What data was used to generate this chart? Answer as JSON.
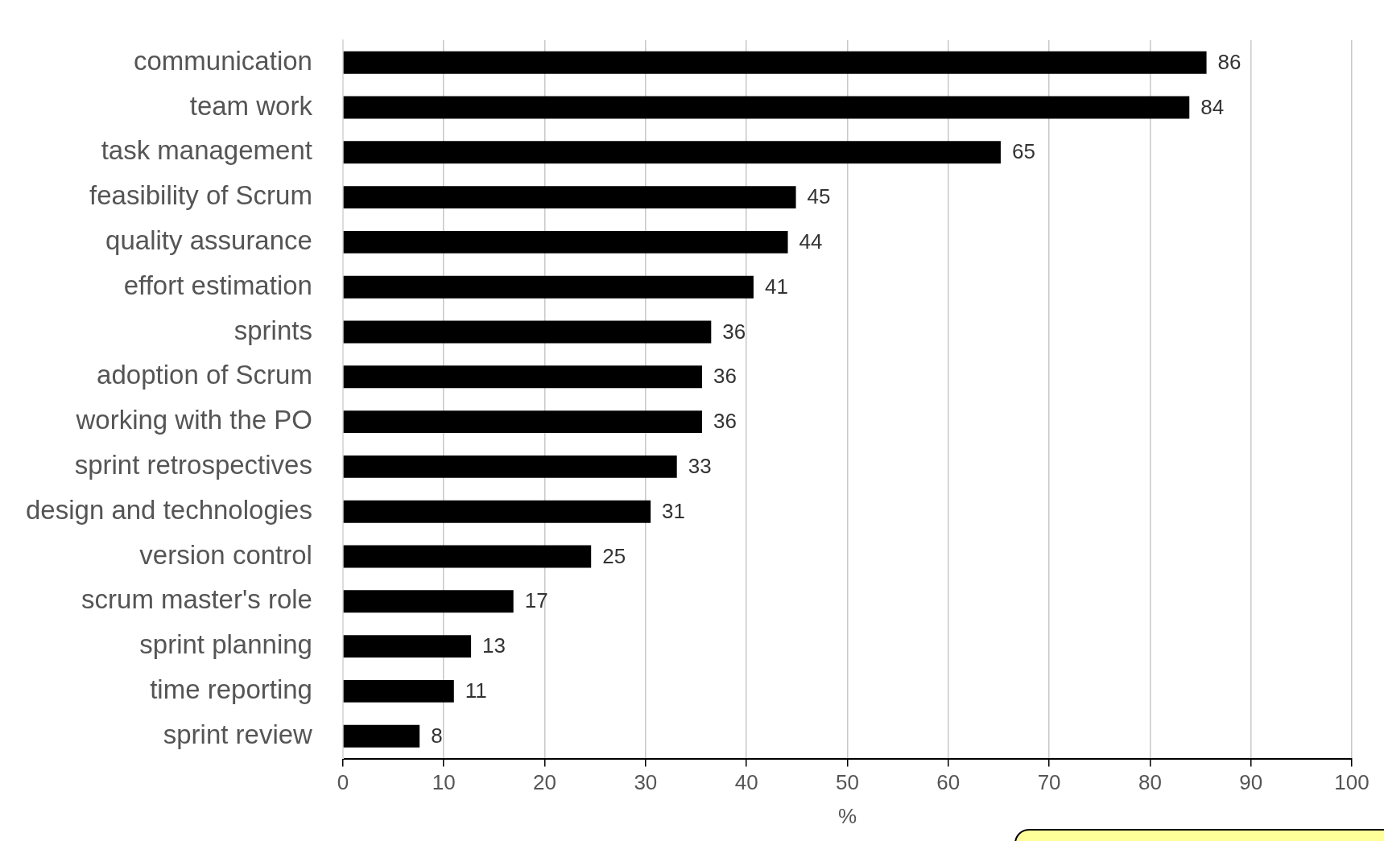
{
  "chart_data": {
    "type": "bar",
    "orientation": "horizontal",
    "xlabel": "%",
    "categories": [
      "communication",
      "team work",
      "task management",
      "feasibility of Scrum",
      "quality assurance",
      "effort estimation",
      "sprints",
      "adoption of Scrum",
      "working with the PO",
      "sprint retrospectives",
      "design and technologies",
      "version control",
      "scrum master's role",
      "sprint planning",
      "time reporting",
      "sprint review"
    ],
    "values": [
      85.6,
      83.9,
      65.2,
      44.9,
      44.1,
      40.7,
      36.5,
      35.6,
      35.6,
      33.1,
      30.5,
      24.6,
      16.9,
      12.7,
      11.0,
      7.6
    ],
    "value_labels": [
      "86",
      "84",
      "65",
      "45",
      "44",
      "41",
      "36",
      "36",
      "36",
      "33",
      "31",
      "25",
      "17",
      "13",
      "11",
      "8"
    ],
    "color": "#000000",
    "xlim": [
      0,
      100
    ],
    "xticks": [
      0,
      10,
      20,
      30,
      40,
      50,
      60,
      70,
      80,
      90,
      100
    ],
    "grid": "x",
    "legend": false
  }
}
